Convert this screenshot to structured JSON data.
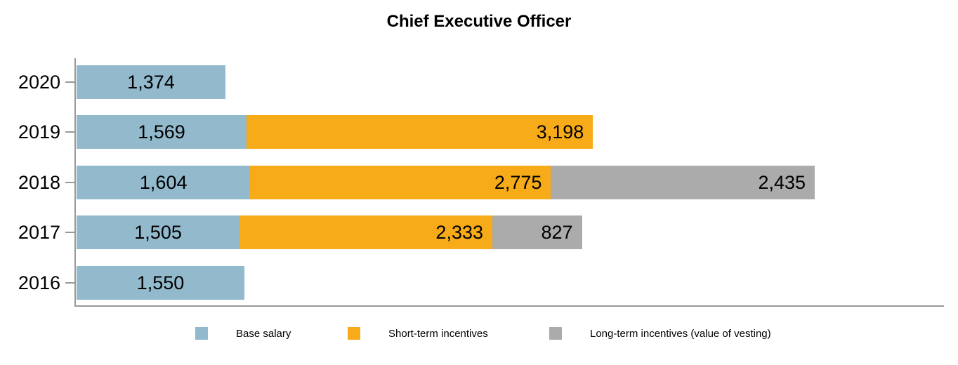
{
  "title": "Chief Executive Officer",
  "chart_data": {
    "type": "bar",
    "orientation": "horizontal-stacked",
    "title": "Chief Executive Officer",
    "categories": [
      "2020",
      "2019",
      "2018",
      "2017",
      "2016"
    ],
    "series": [
      {
        "name": "Base salary",
        "color": "#92B9CC",
        "values": [
          1374,
          1569,
          1604,
          1505,
          1550
        ],
        "labels": [
          "1,374",
          "1,569",
          "1,604",
          "1,505",
          "1,550"
        ]
      },
      {
        "name": "Short-term incentives",
        "color": "#F7AB18",
        "values": [
          0,
          3198,
          2775,
          2333,
          0
        ],
        "labels": [
          "",
          "3,198",
          "2,775",
          "2,333",
          ""
        ]
      },
      {
        "name": "Long-term incentives (value of vesting)",
        "color": "#ABABAB",
        "values": [
          0,
          0,
          2435,
          827,
          0
        ],
        "labels": [
          "",
          "",
          "2,435",
          "827",
          ""
        ]
      }
    ],
    "xlim": [
      0,
      8000
    ],
    "grid": false,
    "legend_position": "bottom",
    "axis_color": "#999999",
    "text_color": "#000000"
  },
  "legend_slugs": [
    "base-salary",
    "short-term-incentives",
    "long-term-incentives"
  ]
}
